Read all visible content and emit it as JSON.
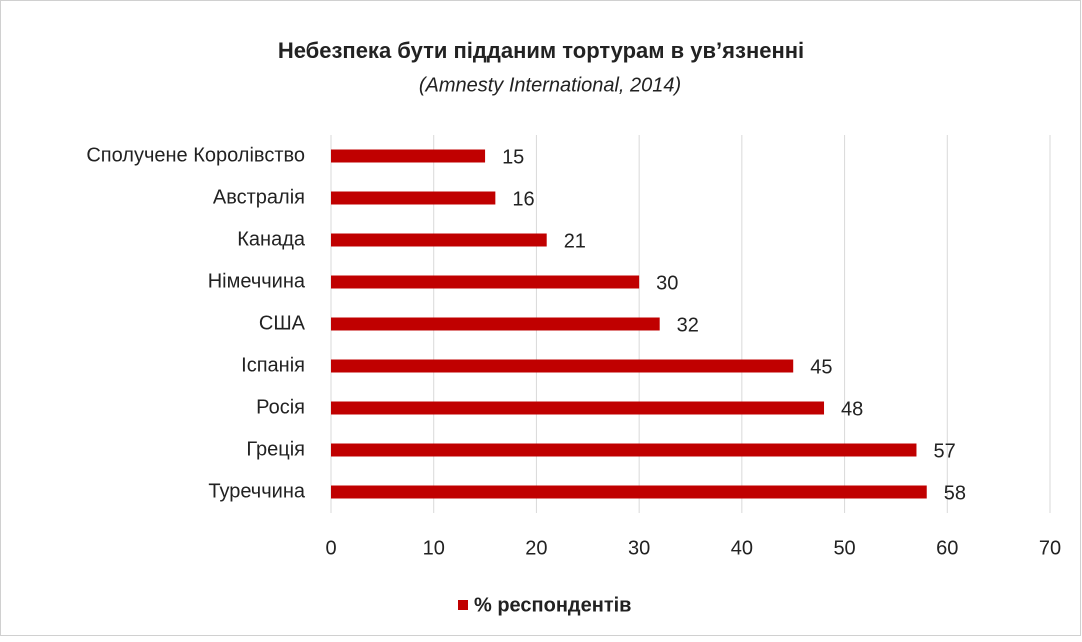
{
  "chart_data": {
    "type": "bar",
    "orientation": "horizontal",
    "title": "Небезпека бути підданим тортурам в ув’язненні",
    "subtitle": "(Amnesty International, 2014)",
    "categories": [
      "Сполучене Королівство",
      "Австралія",
      "Канада",
      "Німеччина",
      "США",
      "Іспанія",
      "Росія",
      "Греція",
      "Туреччина"
    ],
    "series": [
      {
        "name": "% респондентів",
        "color": "#c00000",
        "values": [
          15,
          16,
          21,
          30,
          32,
          45,
          48,
          57,
          58
        ]
      }
    ],
    "xlim": [
      0,
      70
    ],
    "xticks": [
      0,
      10,
      20,
      30,
      40,
      50,
      60,
      70
    ],
    "grid": true,
    "legend": "bottom"
  }
}
